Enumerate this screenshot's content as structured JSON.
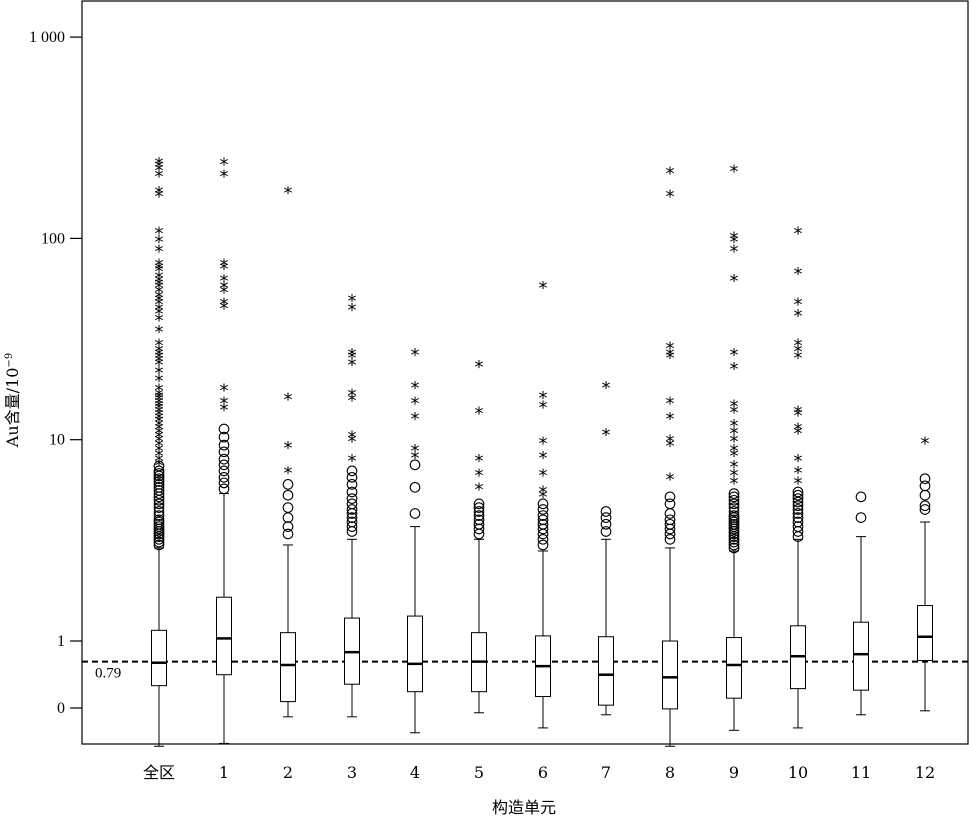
{
  "chart_data": {
    "type": "box",
    "title": "",
    "xlabel": "构造单元",
    "ylabel": "Au含量/10",
    "ylabel_exponent": "−9",
    "y_ticks": [
      {
        "label": "0",
        "value": 0.3
      },
      {
        "label": "1",
        "value": 1
      },
      {
        "label": "10",
        "value": 10
      },
      {
        "label": "100",
        "value": 100
      },
      {
        "label": "1 000",
        "value": 1000
      }
    ],
    "reference_line": {
      "value": 0.79,
      "label": "0.79",
      "style": "dashed"
    },
    "categories": [
      "全区",
      "1",
      "2",
      "3",
      "4",
      "5",
      "6",
      "7",
      "8",
      "9",
      "10",
      "11",
      "12"
    ],
    "boxes": [
      {
        "min": 0.3,
        "q1": 0.6,
        "median": 0.78,
        "q3": 1.13,
        "max": 2.9,
        "outliers": [
          3.0,
          3.1,
          3.2,
          3.3,
          3.4,
          3.5,
          3.6,
          3.7,
          3.8,
          3.9,
          4.0,
          4.2,
          4.4,
          4.6,
          4.8,
          5.0,
          5.2,
          5.4,
          5.6,
          5.8,
          6.0,
          6.2,
          6.4,
          6.6,
          6.8,
          7.0,
          7.4
        ],
        "extremes": [
          7.6,
          8.0,
          8.5,
          9.0,
          9.5,
          10,
          10.5,
          11,
          11.5,
          12,
          12.5,
          13,
          13.5,
          14,
          14.5,
          15,
          15.5,
          16,
          16.5,
          17,
          18,
          20,
          22,
          24,
          25,
          26,
          27,
          28,
          30,
          35,
          40,
          43,
          45,
          48,
          50,
          52,
          55,
          58,
          60,
          62,
          65,
          70,
          72,
          75,
          88,
          98,
          108,
          165,
          172,
          208,
          222,
          232,
          240
        ]
      },
      {
        "min": 0.31,
        "q1": 0.68,
        "median": 1.03,
        "q3": 1.65,
        "max": 5.4,
        "outliers": [
          5.7,
          6.1,
          6.5,
          7.0,
          7.5,
          8.0,
          8.7,
          9.4,
          10.3,
          11.3
        ],
        "extremes": [
          14.4,
          15.5,
          18.0,
          46,
          48,
          55,
          58,
          63,
          72,
          75,
          208,
          238
        ]
      },
      {
        "min": 0.42,
        "q1": 0.5,
        "median": 0.76,
        "q3": 1.1,
        "max": 3.0,
        "outliers": [
          3.4,
          3.7,
          4.1,
          4.6,
          5.3,
          6.0
        ],
        "extremes": [
          7.0,
          9.3,
          16.2,
          172
        ]
      },
      {
        "min": 0.42,
        "q1": 0.61,
        "median": 0.88,
        "q3": 1.3,
        "max": 3.2,
        "outliers": [
          3.5,
          3.7,
          3.9,
          4.1,
          4.3,
          4.5,
          4.8,
          5.1,
          5.5,
          6.0,
          6.5,
          7.0
        ],
        "extremes": [
          8.0,
          10.0,
          10.5,
          16,
          17,
          24,
          26,
          27,
          45,
          50
        ]
      },
      {
        "min": 0.35,
        "q1": 0.56,
        "median": 0.77,
        "q3": 1.33,
        "max": 3.7,
        "outliers": [
          4.3,
          5.8,
          7.5
        ],
        "extremes": [
          9.0,
          8.3,
          13,
          15.5,
          18.5,
          27
        ]
      },
      {
        "min": 0.44,
        "q1": 0.56,
        "median": 0.79,
        "q3": 1.1,
        "max": 3.2,
        "outliers": [
          3.4,
          3.6,
          3.8,
          4.0,
          4.2,
          4.4,
          4.6,
          4.8
        ],
        "extremes": [
          5.8,
          6.8,
          8.0,
          13.8,
          23.5
        ]
      },
      {
        "min": 0.37,
        "q1": 0.53,
        "median": 0.75,
        "q3": 1.06,
        "max": 2.8,
        "outliers": [
          3.0,
          3.2,
          3.4,
          3.6,
          3.8,
          4.0,
          4.2,
          4.5,
          4.8
        ],
        "extremes": [
          5.3,
          5.6,
          6.8,
          8.3,
          9.8,
          14.8,
          16.5,
          58
        ]
      },
      {
        "min": 0.43,
        "q1": 0.48,
        "median": 0.68,
        "q3": 1.05,
        "max": 3.2,
        "outliers": [
          3.5,
          3.8,
          4.1,
          4.4
        ],
        "extremes": [
          10.8,
          18.5
        ]
      },
      {
        "min": 0.3,
        "q1": 0.46,
        "median": 0.66,
        "q3": 1.0,
        "max": 2.9,
        "outliers": [
          3.2,
          3.4,
          3.6,
          3.8,
          4.0,
          4.3,
          4.8,
          5.2
        ],
        "extremes": [
          6.5,
          9.5,
          10,
          13,
          15.5,
          26,
          27,
          29,
          165,
          215
        ]
      },
      {
        "min": 0.36,
        "q1": 0.52,
        "median": 0.76,
        "q3": 1.04,
        "max": 2.8,
        "outliers": [
          2.9,
          3.0,
          3.1,
          3.2,
          3.3,
          3.4,
          3.5,
          3.6,
          3.7,
          3.8,
          3.9,
          4.0,
          4.1,
          4.2,
          4.4,
          4.6,
          4.8,
          5.0,
          5.2,
          5.4
        ],
        "extremes": [
          6.2,
          6.8,
          7.5,
          8.5,
          9.0,
          10,
          11,
          12,
          14,
          15,
          23,
          27,
          63,
          88,
          98,
          102,
          220
        ]
      },
      {
        "min": 0.37,
        "q1": 0.58,
        "median": 0.84,
        "q3": 1.19,
        "max": 3.2,
        "outliers": [
          3.3,
          3.5,
          3.7,
          3.9,
          4.1,
          4.3,
          4.5,
          4.7,
          4.9,
          5.1,
          5.3,
          5.5
        ],
        "extremes": [
          6.2,
          7.0,
          8.0,
          11,
          11.5,
          13.5,
          14,
          26,
          28,
          30,
          42,
          48,
          68,
          108
        ]
      },
      {
        "min": 0.43,
        "q1": 0.57,
        "median": 0.86,
        "q3": 1.24,
        "max": 3.3,
        "outliers": [
          4.1,
          5.2
        ],
        "extremes": []
      },
      {
        "min": 0.45,
        "q1": 0.8,
        "median": 1.05,
        "q3": 1.5,
        "max": 3.9,
        "outliers": [
          4.5,
          4.7,
          5.3,
          5.9,
          6.4
        ],
        "extremes": [
          9.8
        ]
      }
    ]
  }
}
